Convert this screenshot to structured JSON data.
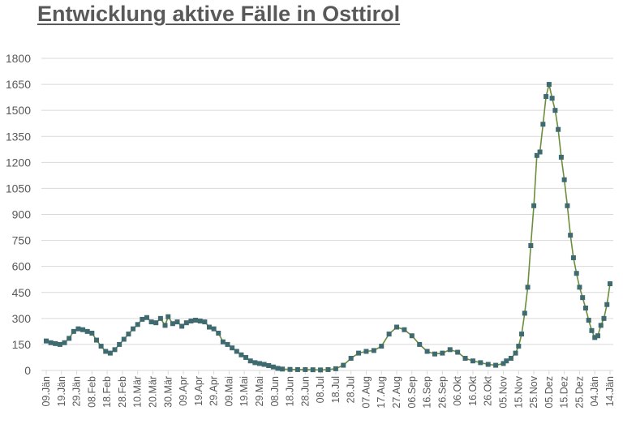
{
  "title": "Entwicklung aktive Fälle in Osttirol",
  "colors": {
    "title": "#595959",
    "gridline": "#d9d9d9",
    "axis": "#d9d9d9",
    "line": "#6b8e3a",
    "marker": "#3f6b70",
    "tick_label": "#595959"
  },
  "chart_data": {
    "type": "line",
    "title": "Entwicklung aktive Fälle in Osttirol",
    "xlabel": "",
    "ylabel": "",
    "ylim": [
      0,
      1800
    ],
    "yticks": [
      0,
      150,
      300,
      450,
      600,
      750,
      900,
      1050,
      1200,
      1350,
      1500,
      1650,
      1800
    ],
    "grid": true,
    "legend": "none",
    "categories": [
      "09.Jän",
      "19.Jän",
      "29.Jän",
      "08.Feb",
      "18.Feb",
      "28.Feb",
      "10.Mär",
      "20.Mär",
      "30.Mär",
      "09.Apr",
      "19.Apr",
      "29.Apr",
      "09.Mai",
      "19.Mai",
      "29.Mai",
      "08.Jun",
      "18.Jun",
      "28.Jun",
      "08.Jul",
      "18.Jul",
      "28.Jul",
      "07.Aug",
      "17.Aug",
      "27.Aug",
      "06.Sep",
      "16.Sep",
      "26.Sep",
      "06.Okt",
      "16.Okt",
      "26.Okt",
      "05.Nov",
      "15.Nov",
      "25.Nov",
      "05.Dez",
      "15.Dez",
      "25.Dez",
      "04.Jän",
      "14.Jän"
    ],
    "series": [
      {
        "name": "Aktive Fälle",
        "x_days": [
          0,
          3,
          6,
          9,
          12,
          15,
          18,
          21,
          24,
          27,
          30,
          33,
          36,
          39,
          42,
          45,
          48,
          51,
          54,
          57,
          60,
          63,
          66,
          69,
          72,
          75,
          78,
          80,
          83,
          86,
          89,
          92,
          95,
          98,
          101,
          104,
          107,
          110,
          113,
          116,
          119,
          122,
          125,
          128,
          131,
          134,
          137,
          140,
          143,
          146,
          149,
          152,
          155,
          160,
          165,
          170,
          175,
          180,
          185,
          190,
          195,
          200,
          205,
          210,
          215,
          220,
          225,
          230,
          235,
          240,
          245,
          250,
          255,
          260,
          265,
          270,
          275,
          280,
          285,
          290,
          295,
          300,
          302,
          305,
          308,
          310,
          312,
          314,
          316,
          318,
          320,
          322,
          324,
          326,
          328,
          330,
          332,
          334,
          336,
          338,
          340,
          342,
          344,
          346,
          348,
          350,
          352,
          354,
          356,
          358,
          360,
          362,
          364,
          366,
          368,
          370
        ],
        "values": [
          170,
          160,
          155,
          150,
          160,
          185,
          225,
          240,
          235,
          225,
          215,
          175,
          140,
          110,
          100,
          120,
          150,
          180,
          210,
          240,
          265,
          295,
          305,
          280,
          275,
          300,
          260,
          310,
          270,
          280,
          255,
          275,
          285,
          290,
          285,
          280,
          250,
          240,
          215,
          165,
          150,
          130,
          110,
          90,
          75,
          55,
          45,
          40,
          35,
          28,
          20,
          12,
          8,
          6,
          5,
          5,
          4,
          3,
          5,
          10,
          30,
          70,
          100,
          110,
          115,
          140,
          210,
          250,
          235,
          200,
          150,
          110,
          95,
          100,
          120,
          105,
          70,
          55,
          45,
          35,
          30,
          40,
          55,
          70,
          100,
          140,
          210,
          330,
          480,
          720,
          950,
          1240,
          1260,
          1420,
          1580,
          1650,
          1570,
          1500,
          1390,
          1230,
          1100,
          950,
          780,
          650,
          560,
          480,
          420,
          360,
          290,
          230,
          190,
          200,
          260,
          300,
          380,
          500
        ]
      }
    ]
  }
}
